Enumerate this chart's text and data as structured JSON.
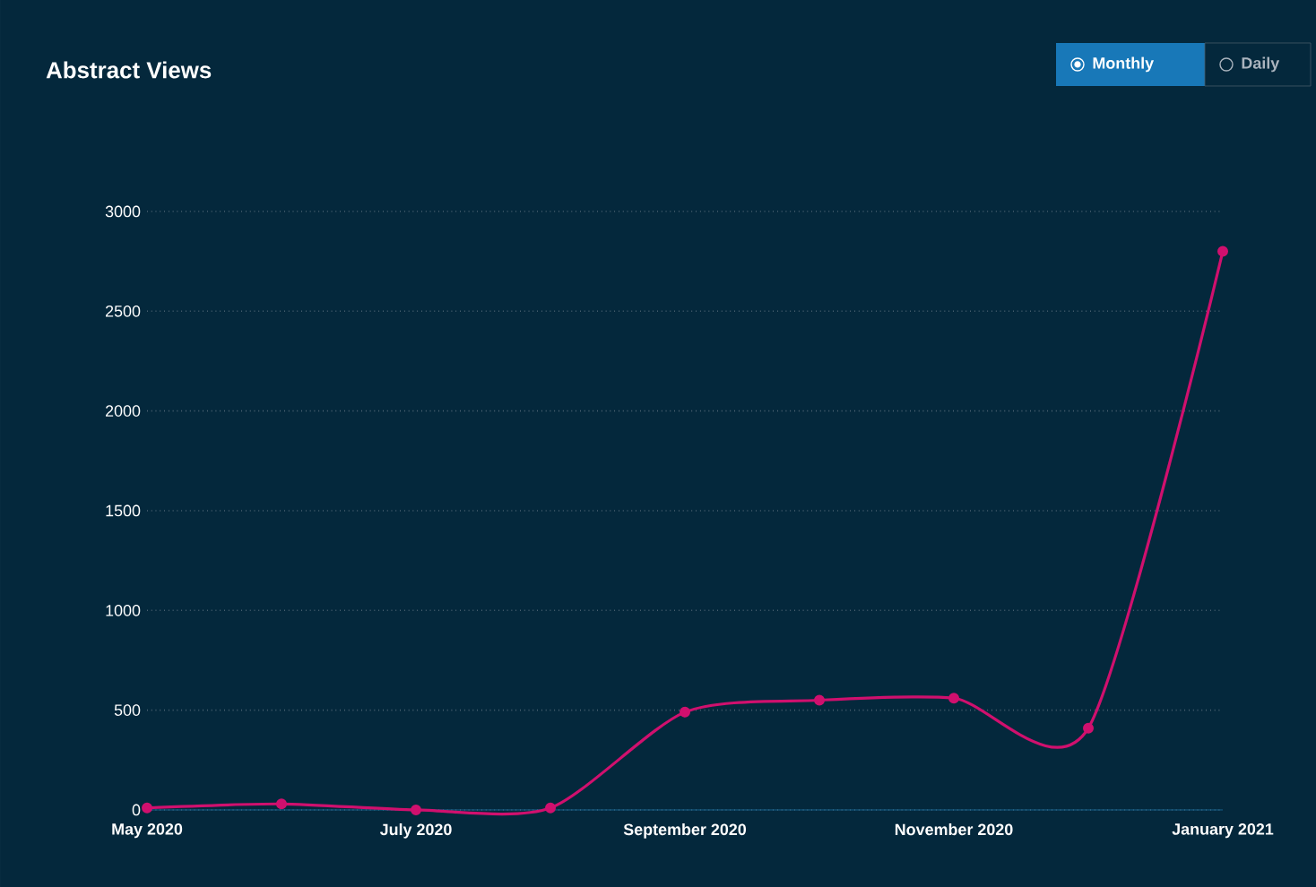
{
  "chart_data": {
    "type": "line",
    "title": "Abstract Views",
    "annotations": [
      "Monthly",
      "Daily"
    ],
    "categories": [
      "May 2020",
      null,
      "July 2020",
      null,
      "September 2020",
      null,
      "November 2020",
      null,
      "January 2021"
    ],
    "series": [
      {
        "color": "#d0106e",
        "values": [
          10,
          30,
          0,
          10,
          490,
          550,
          560,
          410,
          2800
        ]
      }
    ],
    "ylim": [
      0,
      3000
    ],
    "yticks": [
      0,
      500,
      1000,
      1500,
      2000,
      2500,
      3000
    ],
    "grid": "y",
    "marker": "circle"
  }
}
